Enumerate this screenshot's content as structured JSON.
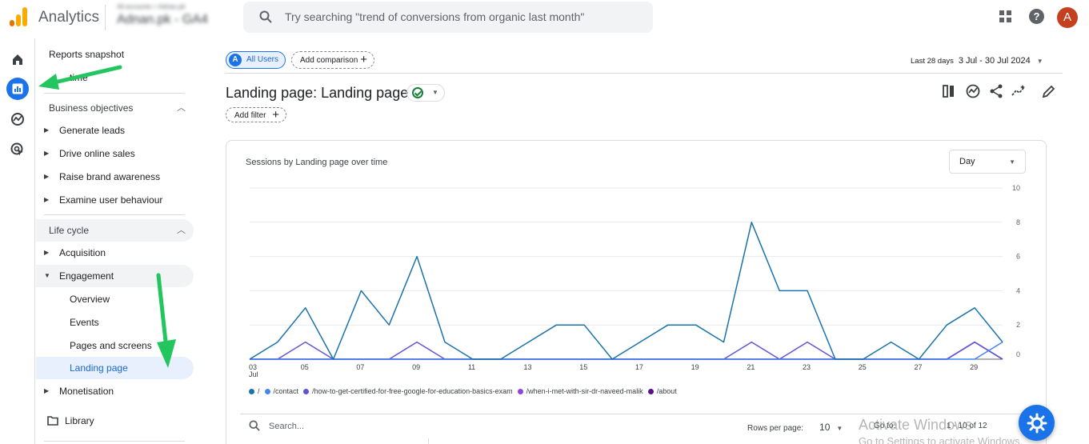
{
  "header": {
    "app_name": "Analytics",
    "account_small": "All accounts > Adnan.pk",
    "account_name": "Adnan.pk - GA4",
    "search_placeholder": "Try searching \"trend of conversions from organic last month\"",
    "avatar_letter": "A",
    "help_glyph": "?"
  },
  "sidebar": {
    "items": [
      {
        "label": "Reports snapshot"
      },
      {
        "label": "time"
      },
      {
        "label": "Business objectives"
      },
      {
        "label": "Generate leads"
      },
      {
        "label": "Drive online sales"
      },
      {
        "label": "Raise brand awareness"
      },
      {
        "label": "Examine user behaviour"
      },
      {
        "label": "Life cycle"
      },
      {
        "label": "Acquisition"
      },
      {
        "label": "Engagement"
      },
      {
        "label": "Overview"
      },
      {
        "label": "Events"
      },
      {
        "label": "Pages and screens"
      },
      {
        "label": "Landing page"
      },
      {
        "label": "Monetisation"
      },
      {
        "label": "Library"
      }
    ]
  },
  "comparison": {
    "segment_letter": "A",
    "segment_label": "All Users",
    "add_comparison": "Add comparison",
    "plus": "+"
  },
  "date_range": {
    "label": "Last 28 days",
    "range": "3 Jul - 30 Jul 2024"
  },
  "page": {
    "title": "Landing page: Landing page",
    "add_filter": "Add filter"
  },
  "card": {
    "title": "Sessions by Landing page over time",
    "interval": "Day"
  },
  "chart_data": {
    "type": "line",
    "title": "Sessions by Landing page over time",
    "x": [
      "03 Jul",
      "04",
      "05",
      "06",
      "07",
      "08",
      "09",
      "10",
      "11",
      "12",
      "13",
      "14",
      "15",
      "16",
      "17",
      "18",
      "19",
      "20",
      "21",
      "22",
      "23",
      "24",
      "25",
      "26",
      "27",
      "28",
      "29",
      "30"
    ],
    "x_tick_labels": [
      "03",
      "Jul",
      "05",
      "07",
      "09",
      "11",
      "13",
      "15",
      "17",
      "19",
      "21",
      "23",
      "25",
      "27",
      "29"
    ],
    "y_tick_labels": [
      "10",
      "8",
      "6",
      "4",
      "2",
      "0"
    ],
    "ylim": [
      0,
      10
    ],
    "grid": true,
    "legend_position": "bottom-left",
    "series": [
      {
        "name": "/",
        "color": "#1a73a8",
        "values": [
          0,
          1,
          3,
          0,
          4,
          2,
          6,
          1,
          0,
          0,
          1,
          2,
          2,
          0,
          1,
          2,
          2,
          1,
          8,
          4,
          4,
          0,
          0,
          1,
          0,
          2,
          3,
          1
        ]
      },
      {
        "name": "/contact",
        "color": "#4285f4",
        "values": [
          0,
          0,
          0,
          0,
          0,
          0,
          0,
          0,
          0,
          0,
          0,
          0,
          0,
          0,
          0,
          0,
          0,
          0,
          0,
          0,
          0,
          0,
          0,
          0,
          0,
          0,
          0,
          1
        ]
      },
      {
        "name": "/how-to-get-certified-for-free-google-for-education-basics-exam",
        "color": "#5e55d6",
        "values": [
          0,
          0,
          1,
          0,
          0,
          0,
          1,
          0,
          0,
          0,
          0,
          0,
          0,
          0,
          0,
          0,
          0,
          0,
          1,
          0,
          1,
          0,
          0,
          0,
          0,
          0,
          1,
          0
        ]
      },
      {
        "name": "/when-i-met-with-sir-dr-naveed-malik",
        "color": "#8e44dd",
        "values": [
          0,
          0,
          0,
          0,
          0,
          0,
          0,
          0,
          0,
          0,
          0,
          0,
          0,
          0,
          0,
          0,
          0,
          0,
          0,
          0,
          0,
          0,
          0,
          0,
          0,
          0,
          1,
          0
        ]
      },
      {
        "name": "/about",
        "color": "#5b0f8f",
        "values": [
          0,
          0,
          0,
          0,
          0,
          0,
          0,
          0,
          0,
          0,
          0,
          0,
          0,
          0,
          0,
          0,
          0,
          0,
          0,
          0,
          0,
          0,
          0,
          0,
          0,
          0,
          1,
          0
        ]
      }
    ]
  },
  "table": {
    "search_placeholder": "Search...",
    "rows_per_page_label": "Rows per page:",
    "rows_per_page_value": "10",
    "go_to_label": "Go to:",
    "pager_text": "1 - 10 of 12"
  },
  "watermark": {
    "line1": "Activate Windows",
    "line2": "Go to Settings to activate Windows."
  },
  "colors": {
    "accent": "#1a73e8",
    "avatar": "#c5401e",
    "logo_orange": "#f9ab00",
    "logo_dark_orange": "#e37400"
  }
}
